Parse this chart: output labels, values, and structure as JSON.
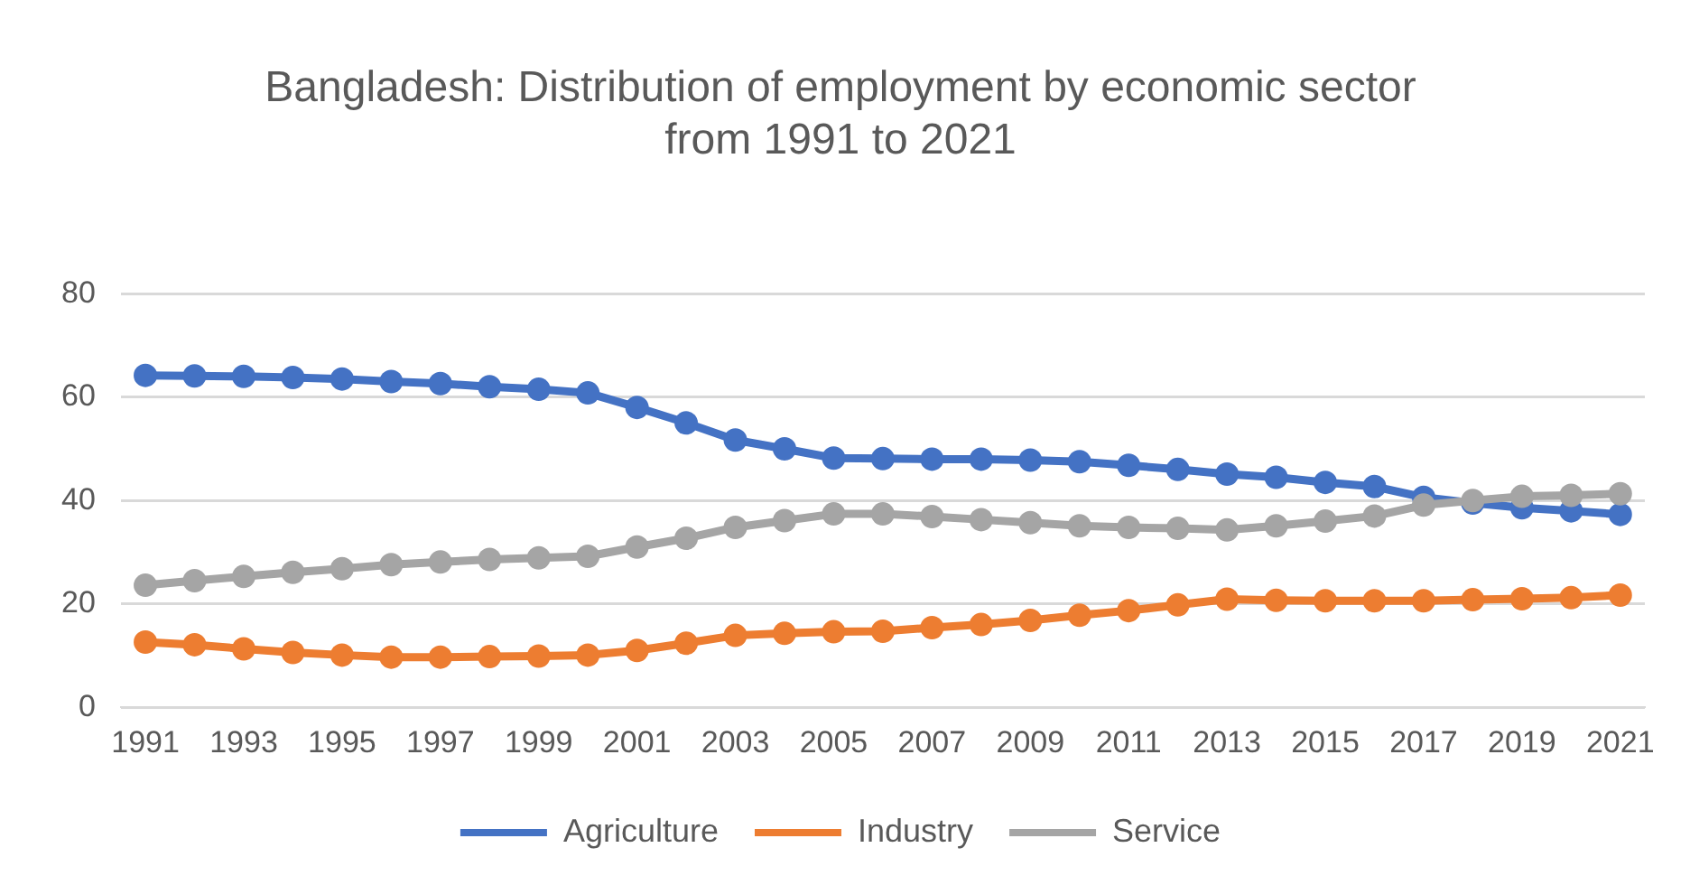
{
  "chart_data": {
    "type": "line",
    "title": "Bangladesh: Distribution of employment by economic sector from 1991 to 2021",
    "categories": [
      "1991",
      null,
      "1993",
      null,
      "1995",
      null,
      "1997",
      null,
      "1999",
      null,
      "2001",
      null,
      "2003",
      null,
      "2005",
      null,
      "2007",
      null,
      "2009",
      null,
      "2011",
      null,
      "2013",
      null,
      "2015",
      null,
      "2017",
      null,
      "2019",
      null,
      "2021"
    ],
    "series": [
      {
        "name": "Agriculture",
        "color": "#4472c4",
        "values": [
          64.2,
          64.1,
          64,
          63.8,
          63.5,
          63,
          62.6,
          62,
          61.5,
          60.8,
          58,
          55,
          51.7,
          50,
          48.2,
          48.1,
          48,
          48,
          47.8,
          47.5,
          46.8,
          46,
          45.1,
          44.5,
          43.5,
          42.7,
          40.6,
          39.5,
          38.6,
          38,
          37.3
        ]
      },
      {
        "name": "Industry",
        "color": "#ed7d31",
        "values": [
          12.6,
          12.1,
          11.3,
          10.6,
          10.1,
          9.7,
          9.7,
          9.8,
          9.9,
          10.1,
          11,
          12.4,
          13.9,
          14.3,
          14.6,
          14.7,
          15.4,
          16,
          16.8,
          17.8,
          18.7,
          19.8,
          20.9,
          20.7,
          20.6,
          20.6,
          20.6,
          20.8,
          21,
          21.2,
          21.7
        ]
      },
      {
        "name": "Service",
        "color": "#a5a5a5",
        "values": [
          23.6,
          24.5,
          25.3,
          26.1,
          26.8,
          27.6,
          28.1,
          28.6,
          28.9,
          29.2,
          31,
          32.7,
          34.8,
          36.1,
          37.4,
          37.4,
          36.9,
          36.3,
          35.7,
          35.1,
          34.8,
          34.6,
          34.3,
          35.1,
          36,
          37,
          39.1,
          40,
          40.8,
          41,
          41.3
        ]
      }
    ],
    "ylim": [
      0,
      80
    ],
    "yticks": [
      0,
      20,
      40,
      60,
      80
    ],
    "grid": "y",
    "legend": "bottom",
    "marker": "circle",
    "line_style": "solid"
  }
}
